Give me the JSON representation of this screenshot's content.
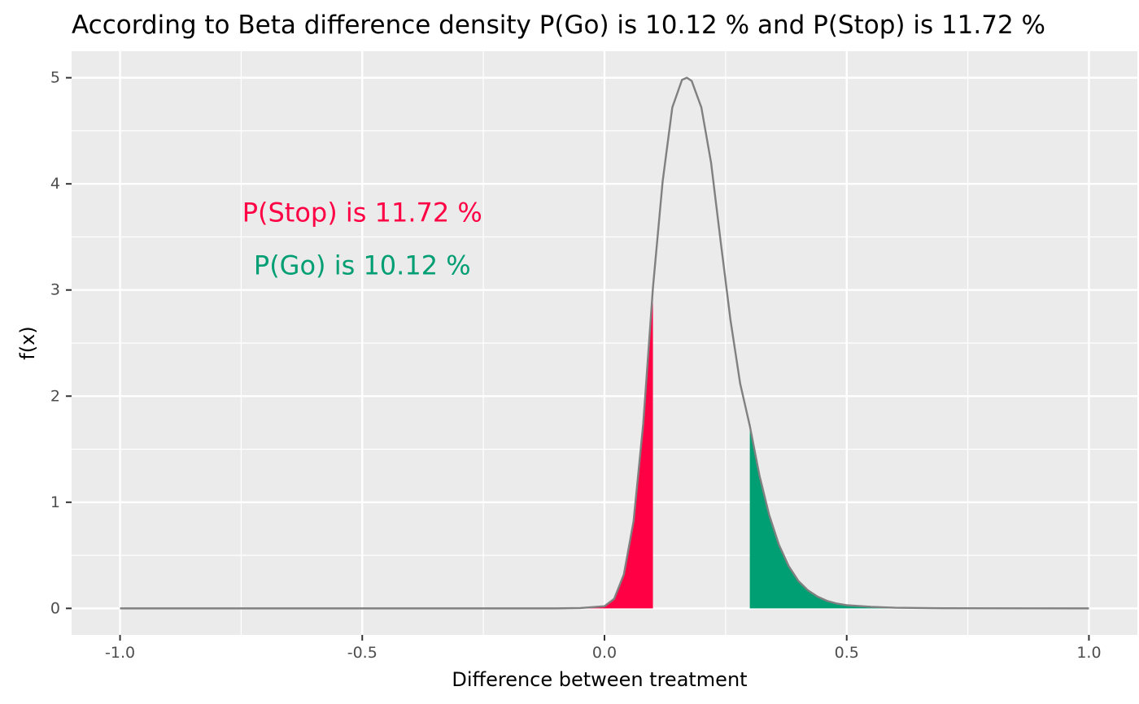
{
  "chart_data": {
    "type": "area",
    "title": "According to Beta difference density P(Go) is 10.12 % and P(Stop) is 11.72 %",
    "xlabel": "Difference between treatment",
    "ylabel": "f(x)",
    "xlim": [
      -1.1,
      1.1
    ],
    "ylim": [
      -0.25,
      5.25
    ],
    "x_ticks": [
      -1.0,
      -0.5,
      0.0,
      0.5,
      1.0
    ],
    "x_tick_labels": [
      "-1.0",
      "-0.5",
      "0.0",
      "0.5",
      "1.0"
    ],
    "y_ticks": [
      0,
      1,
      2,
      3,
      4,
      5
    ],
    "y_tick_labels": [
      "0",
      "1",
      "2",
      "3",
      "4",
      "5"
    ],
    "grid": true,
    "density": {
      "name": "",
      "color": "#808080",
      "x": [
        -1.0,
        -0.5,
        -0.1,
        -0.05,
        0.0,
        0.02,
        0.04,
        0.06,
        0.08,
        0.1,
        0.12,
        0.14,
        0.16,
        0.17,
        0.18,
        0.2,
        0.22,
        0.24,
        0.26,
        0.28,
        0.3,
        0.32,
        0.34,
        0.36,
        0.38,
        0.4,
        0.42,
        0.44,
        0.46,
        0.48,
        0.5,
        0.55,
        0.6,
        0.7,
        1.0
      ],
      "y": [
        0.0,
        0.0,
        0.0,
        0.003,
        0.02,
        0.09,
        0.32,
        0.82,
        1.74,
        3.02,
        4.02,
        4.72,
        4.98,
        5.0,
        4.97,
        4.72,
        4.2,
        3.45,
        2.72,
        2.12,
        1.72,
        1.25,
        0.88,
        0.6,
        0.4,
        0.26,
        0.17,
        0.11,
        0.07,
        0.045,
        0.03,
        0.015,
        0.006,
        0.001,
        0.0
      ]
    },
    "regions": [
      {
        "name": "Stop",
        "color": "#ff0044",
        "x_from": -1.0,
        "x_to": 0.1
      },
      {
        "name": "Go",
        "color": "#009e73",
        "x_from": 0.3,
        "x_to": 1.0
      }
    ],
    "annotations": [
      {
        "text": "P(Stop) is 11.72 %",
        "x": -0.5,
        "y": 3.73,
        "color": "#ff0044"
      },
      {
        "text": "P(Go) is 10.12 %",
        "x": -0.5,
        "y": 3.23,
        "color": "#009e73"
      }
    ]
  }
}
